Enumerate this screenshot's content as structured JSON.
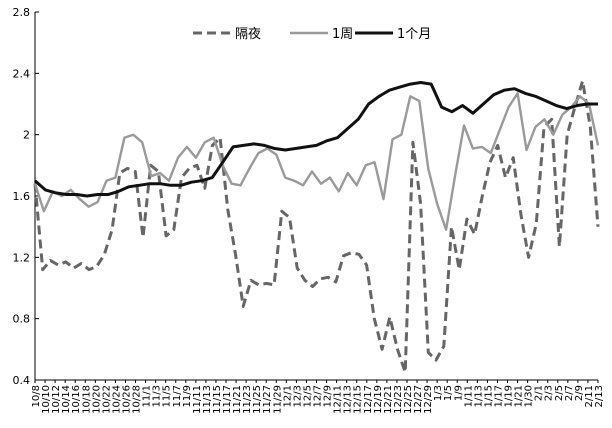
{
  "chart_data": {
    "type": "line",
    "title": "",
    "xlabel": "",
    "ylabel": "",
    "ylim": [
      0.4,
      2.8
    ],
    "yticks": [
      "0.4",
      "0.8",
      "1.2",
      "1.6",
      "2",
      "2.4",
      "2.8"
    ],
    "grid": false,
    "legend_position": "top-center",
    "xtick_labels": [
      "10/8",
      "10/10",
      "10/12",
      "10/14",
      "10/16",
      "10/18",
      "10/20",
      "10/22",
      "10/24",
      "10/26",
      "10/28",
      "11/1",
      "11/3",
      "11/5",
      "11/7",
      "11/9",
      "11/11",
      "11/13",
      "11/15",
      "11/17",
      "11/21",
      "11/23",
      "11/25",
      "11/27",
      "11/29",
      "12/1",
      "12/3",
      "12/5",
      "12/7",
      "12/9",
      "12/11",
      "12/13",
      "12/15",
      "12/17",
      "12/19",
      "12/21",
      "12/23",
      "12/25",
      "12/27",
      "12/29",
      "1/3",
      "1/5",
      "1/9",
      "1/11",
      "1/13",
      "1/15",
      "1/17",
      "1/19",
      "1/21",
      "1/30",
      "2/1",
      "2/3",
      "2/5",
      "2/7",
      "2/9",
      "2/11",
      "2/13"
    ],
    "series": [
      {
        "name": "隔夜",
        "style": "dashed",
        "color": "#666666",
        "values": [
          1.68,
          1.12,
          1.18,
          1.15,
          1.17,
          1.13,
          1.16,
          1.12,
          1.14,
          1.22,
          1.38,
          1.75,
          1.78,
          1.76,
          1.33,
          1.8,
          1.76,
          1.34,
          1.38,
          1.72,
          1.78,
          1.8,
          1.65,
          1.93,
          1.98,
          1.51,
          1.22,
          0.88,
          1.05,
          1.02,
          1.03,
          1.02,
          1.5,
          1.46,
          1.13,
          1.05,
          1.01,
          1.06,
          1.07,
          1.04,
          1.21,
          1.23,
          1.22,
          1.15,
          0.8,
          0.6,
          0.81,
          0.6,
          0.45,
          1.95,
          1.55,
          0.58,
          0.53,
          0.62,
          1.4,
          1.12,
          1.45,
          1.35,
          1.6,
          1.82,
          1.93,
          1.72,
          1.85,
          1.48,
          1.2,
          1.42,
          2.05,
          2.1,
          1.27,
          2.0,
          2.18,
          2.35,
          2.05,
          1.4
        ]
      },
      {
        "name": "1周",
        "style": "solid",
        "color": "#9a9a9a",
        "values": [
          1.68,
          1.5,
          1.63,
          1.6,
          1.64,
          1.58,
          1.53,
          1.56,
          1.7,
          1.72,
          1.98,
          2.0,
          1.95,
          1.73,
          1.75,
          1.7,
          1.85,
          1.92,
          1.85,
          1.95,
          1.98,
          1.8,
          1.68,
          1.67,
          1.78,
          1.88,
          1.91,
          1.87,
          1.72,
          1.7,
          1.67,
          1.76,
          1.68,
          1.72,
          1.63,
          1.75,
          1.67,
          1.8,
          1.82,
          1.58,
          1.97,
          2.0,
          2.25,
          2.22,
          1.78,
          1.55,
          1.38,
          1.73,
          2.06,
          1.91,
          1.92,
          1.88,
          2.03,
          2.18,
          2.27,
          1.9,
          2.05,
          2.1,
          2.0,
          2.13,
          2.18,
          2.25,
          2.2,
          1.93
        ]
      },
      {
        "name": "1个月",
        "style": "solid",
        "color": "#111111",
        "values": [
          1.7,
          1.64,
          1.62,
          1.61,
          1.61,
          1.6,
          1.61,
          1.61,
          1.63,
          1.66,
          1.67,
          1.68,
          1.68,
          1.67,
          1.67,
          1.69,
          1.7,
          1.72,
          1.82,
          1.92,
          1.93,
          1.94,
          1.93,
          1.91,
          1.9,
          1.91,
          1.92,
          1.93,
          1.96,
          1.98,
          2.04,
          2.1,
          2.2,
          2.25,
          2.29,
          2.31,
          2.33,
          2.34,
          2.33,
          2.18,
          2.15,
          2.19,
          2.14,
          2.2,
          2.26,
          2.29,
          2.3,
          2.27,
          2.25,
          2.22,
          2.19,
          2.17,
          2.19,
          2.2,
          2.2
        ]
      }
    ]
  }
}
